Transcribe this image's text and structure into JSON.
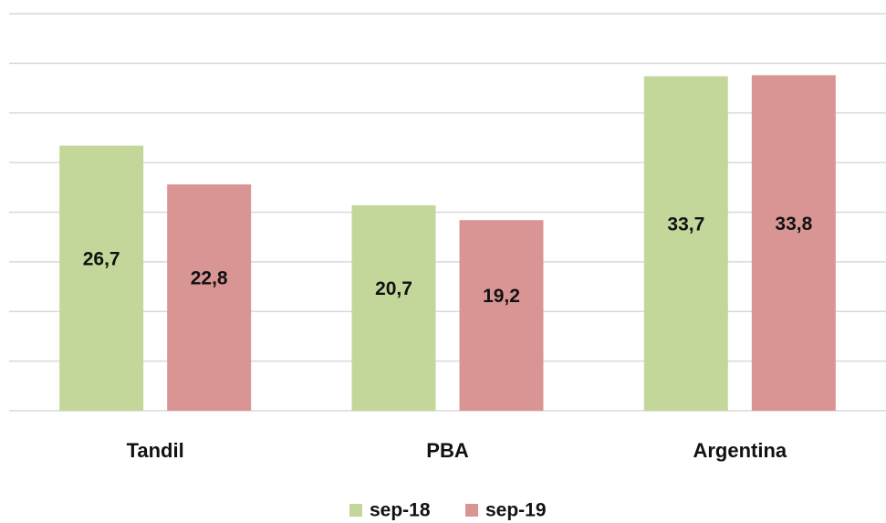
{
  "chart_data": {
    "type": "bar",
    "categories": [
      "Tandil",
      "PBA",
      "Argentina"
    ],
    "series": [
      {
        "name": "sep-18",
        "color": "#c4d79b",
        "values": [
          26.7,
          20.7,
          33.7
        ],
        "value_labels": [
          "26,7",
          "20,7",
          "33,7"
        ]
      },
      {
        "name": "sep-19",
        "color": "#d99594",
        "values": [
          22.8,
          19.2,
          33.8
        ],
        "value_labels": [
          "22,8",
          "19,2",
          "33,8"
        ]
      }
    ],
    "ylim": [
      0,
      40
    ],
    "yticks": [
      0,
      5,
      10,
      15,
      20,
      25,
      30,
      35,
      40
    ],
    "grid": true,
    "legend": "bottom"
  }
}
